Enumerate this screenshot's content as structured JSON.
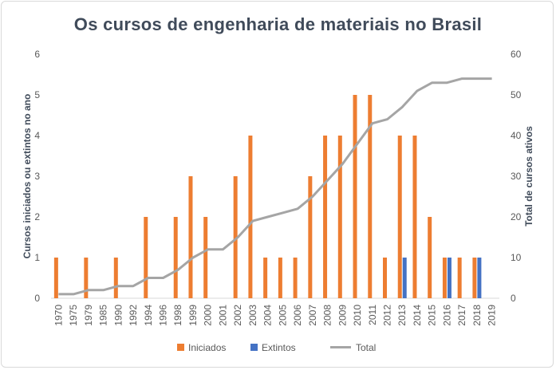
{
  "chart_data": {
    "type": "bar",
    "title": "Os cursos de engenharia de materiais no Brasil",
    "categories": [
      "1970",
      "1975",
      "1979",
      "1985",
      "1990",
      "1992",
      "1994",
      "1996",
      "1998",
      "1999",
      "2000",
      "2001",
      "2002",
      "2003",
      "2004",
      "2005",
      "2006",
      "2007",
      "2008",
      "2009",
      "2010",
      "2011",
      "2012",
      "2013",
      "2014",
      "2015",
      "2016",
      "2017",
      "2018",
      "2019"
    ],
    "series": [
      {
        "name": "Iniciados",
        "type": "bar",
        "axis": "left",
        "color": "#ed7d31",
        "values": [
          1,
          0,
          1,
          0,
          1,
          0,
          2,
          0,
          2,
          3,
          2,
          0,
          3,
          4,
          1,
          1,
          1,
          3,
          4,
          4,
          5,
          5,
          1,
          4,
          4,
          2,
          1,
          1,
          1,
          0
        ]
      },
      {
        "name": "Extintos",
        "type": "bar",
        "axis": "left",
        "color": "#4472c4",
        "values": [
          0,
          0,
          0,
          0,
          0,
          0,
          0,
          0,
          0,
          0,
          0,
          0,
          0,
          0,
          0,
          0,
          0,
          0,
          0,
          0,
          0,
          0,
          0,
          1,
          0,
          0,
          1,
          0,
          1,
          0
        ]
      },
      {
        "name": "Total",
        "type": "line",
        "axis": "right",
        "color": "#a5a5a5",
        "values": [
          1,
          1,
          2,
          2,
          3,
          3,
          5,
          5,
          7,
          10,
          12,
          12,
          15,
          19,
          20,
          21,
          22,
          25,
          29,
          33,
          38,
          43,
          44,
          47,
          51,
          53,
          53,
          54,
          54,
          54
        ]
      }
    ],
    "ylabel": "Cursos iniciados ou extintos no ano",
    "y2label": "Total de cursos ativos",
    "ylim": [
      0,
      6
    ],
    "y2lim": [
      0,
      60
    ],
    "yticks": [
      "0",
      "1",
      "2",
      "3",
      "4",
      "5",
      "6"
    ],
    "y2ticks": [
      "0",
      "10",
      "20",
      "30",
      "40",
      "50",
      "60"
    ],
    "grid": false,
    "legend": "bottom"
  }
}
